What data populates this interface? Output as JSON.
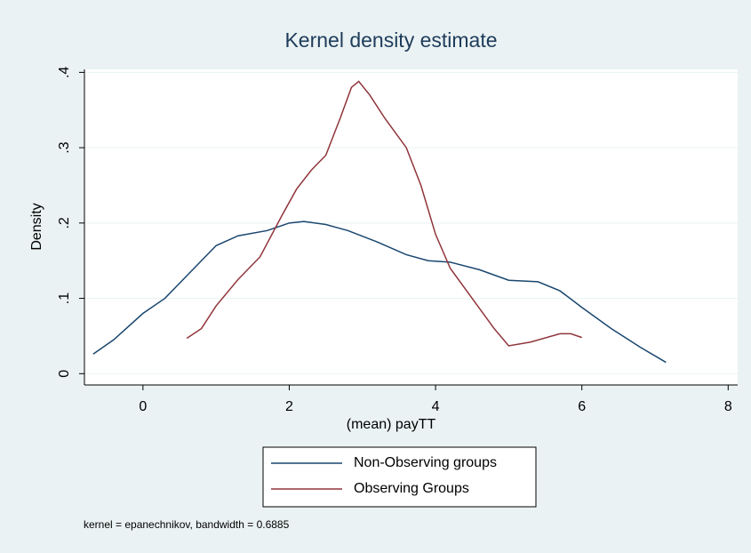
{
  "chart_data": {
    "type": "line",
    "title": "Kernel density estimate",
    "x_label": "(mean) payTT",
    "y_label": "Density",
    "note": "kernel = epanechnikov, bandwidth = 0.6885",
    "xlim": [
      -0.8,
      8.13
    ],
    "xticks": [
      0,
      2,
      4,
      6,
      8
    ],
    "ylim": [
      -0.015,
      0.404
    ],
    "yticks": [
      0,
      {
        "value": 0.1,
        "label": ".1"
      },
      {
        "value": 0.2,
        "label": ".2"
      },
      {
        "value": 0.3,
        "label": ".3"
      },
      {
        "value": 0.4,
        "label": ".4"
      }
    ],
    "grid": true,
    "legend": "bottom",
    "series": [
      {
        "name": "Non-Observing groups",
        "color": "#1a476f",
        "x": [
          -0.68,
          -0.4,
          0,
          0.3,
          0.6,
          1.0,
          1.3,
          1.7,
          2.0,
          2.2,
          2.5,
          2.8,
          3.2,
          3.6,
          3.9,
          4.2,
          4.6,
          5.0,
          5.4,
          5.7,
          6.0,
          6.4,
          6.8,
          7.15
        ],
        "values": [
          0.026,
          0.045,
          0.08,
          0.1,
          0.13,
          0.17,
          0.183,
          0.19,
          0.2,
          0.202,
          0.198,
          0.19,
          0.175,
          0.158,
          0.15,
          0.148,
          0.138,
          0.124,
          0.122,
          0.11,
          0.088,
          0.06,
          0.035,
          0.015
        ]
      },
      {
        "name": "Observing Groups",
        "color": "#90353b",
        "x": [
          0.6,
          0.8,
          1.0,
          1.3,
          1.6,
          1.9,
          2.1,
          2.3,
          2.5,
          2.7,
          2.85,
          2.95,
          3.1,
          3.3,
          3.6,
          3.8,
          4.0,
          4.2,
          4.5,
          4.8,
          5.0,
          5.3,
          5.7,
          5.85,
          6.0
        ],
        "values": [
          0.047,
          0.06,
          0.09,
          0.125,
          0.155,
          0.21,
          0.245,
          0.27,
          0.29,
          0.34,
          0.38,
          0.388,
          0.37,
          0.34,
          0.3,
          0.25,
          0.185,
          0.14,
          0.1,
          0.06,
          0.037,
          0.042,
          0.053,
          0.053,
          0.048
        ]
      }
    ]
  }
}
